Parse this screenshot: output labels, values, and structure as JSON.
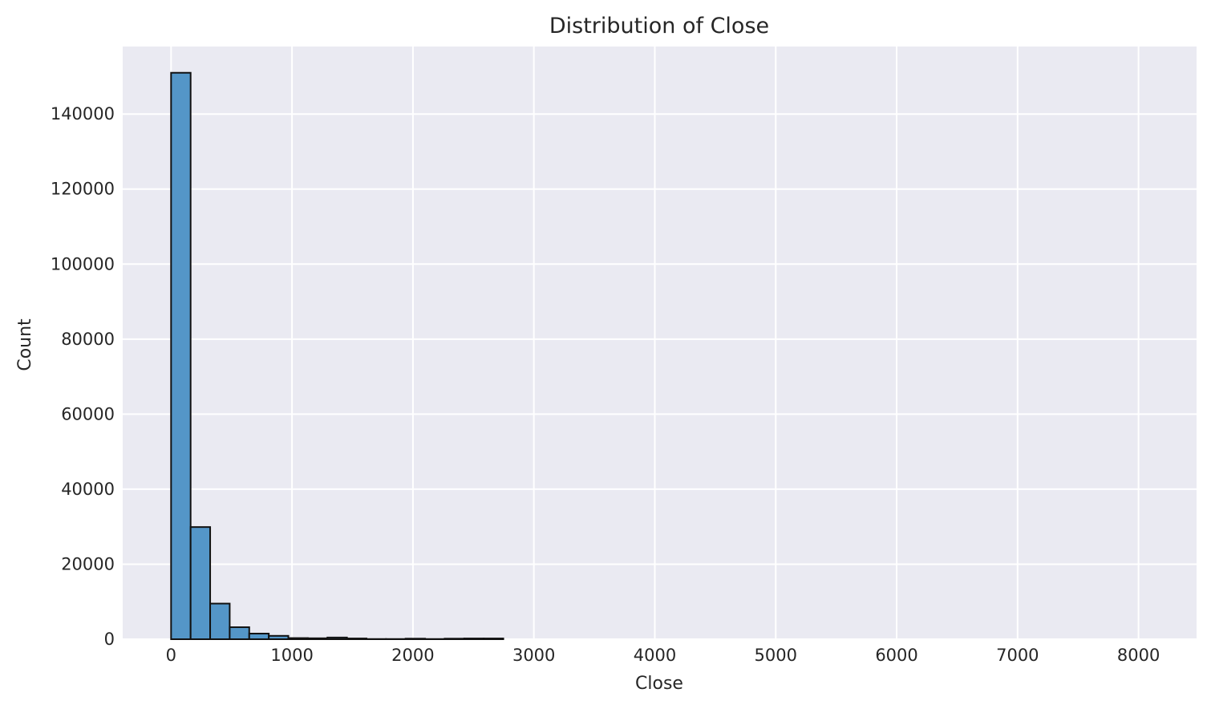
{
  "chart_data": {
    "type": "bar",
    "title": "Distribution of Close",
    "xlabel": "Close",
    "ylabel": "Count",
    "xlim": [
      -400,
      8480
    ],
    "ylim": [
      0,
      158000
    ],
    "xticks": [
      0,
      1000,
      2000,
      3000,
      4000,
      5000,
      6000,
      7000,
      8000
    ],
    "yticks": [
      0,
      20000,
      40000,
      60000,
      80000,
      100000,
      120000,
      140000
    ],
    "bin_width": 161.6,
    "bin_start": 0,
    "values": [
      151000,
      29900,
      9500,
      3200,
      1500,
      900,
      300,
      250,
      450,
      200,
      50,
      50,
      150,
      50,
      150,
      200,
      200
    ],
    "grid": true,
    "colors": {
      "bar_fill": "#5496c8",
      "bar_edge": "#111111",
      "plot_background": "#eaeaf2",
      "grid": "#ffffff"
    }
  }
}
